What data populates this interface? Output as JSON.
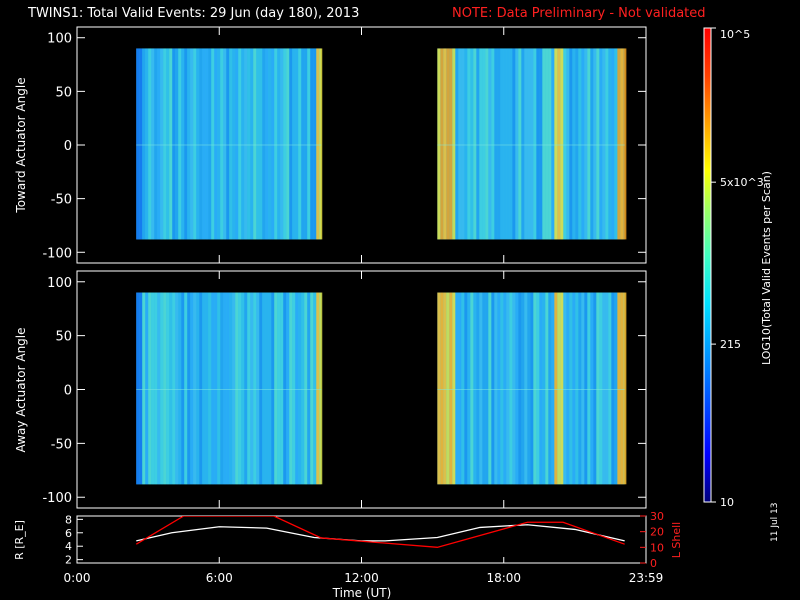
{
  "header": {
    "title": "TWINS1: Total Valid Events: 29 Jun (day 180), 2013",
    "note": "NOTE: Data Preliminary - Not validated"
  },
  "date_stamp": "11 Jul 13",
  "colors": {
    "background": "#000000",
    "axes": "#ffffff",
    "note": "#ff2020",
    "r_line": "#ffffff",
    "lshell_line": "#ff0000"
  },
  "chart_data": [
    {
      "type": "heatmap",
      "title": "",
      "ylabel": "Toward Actuator Angle",
      "ylim": [
        -110,
        110
      ],
      "yticks": [
        100,
        50,
        0,
        -50,
        -100
      ],
      "xlim": [
        0,
        24
      ],
      "data_blocks": [
        {
          "x_start": 2.5,
          "x_end": 10.3,
          "y_start": -88,
          "y_end": 90
        },
        {
          "x_start": 15.2,
          "x_end": 23.1,
          "y_start": -88,
          "y_end": 90
        }
      ],
      "colorbar": {
        "label": "LOG10(Total Valid Events per Scan)",
        "scale": "log",
        "range": [
          10,
          100000
        ],
        "tick_labels": [
          "10",
          "215",
          "5x10^3",
          "10^5"
        ],
        "tick_values": [
          10,
          215,
          5000,
          100000
        ]
      }
    },
    {
      "type": "heatmap",
      "title": "",
      "ylabel": "Away Actuator Angle",
      "ylim": [
        -110,
        110
      ],
      "yticks": [
        100,
        50,
        0,
        -50,
        -100
      ],
      "xlim": [
        0,
        24
      ],
      "data_blocks": [
        {
          "x_start": 2.5,
          "x_end": 10.3,
          "y_start": -88,
          "y_end": 90
        },
        {
          "x_start": 15.2,
          "x_end": 23.1,
          "y_start": -88,
          "y_end": 90
        }
      ]
    },
    {
      "type": "line",
      "title": "",
      "xlabel": "Time (UT)",
      "ylabel_left": "R [R_E]",
      "ylabel_right": "L Shell",
      "xlim": [
        0,
        24
      ],
      "xticks": [
        0,
        6,
        12,
        18,
        24
      ],
      "xtick_labels": [
        "0:00",
        "6:00",
        "12:00",
        "18:00",
        "23:59"
      ],
      "ylim_left": [
        1.5,
        8.5
      ],
      "yticks_left": [
        2,
        4,
        6,
        8
      ],
      "ylim_right": [
        0,
        30
      ],
      "yticks_right": [
        0,
        10,
        20,
        30
      ],
      "series": [
        {
          "name": "R",
          "axis": "left",
          "x": [
            2.5,
            4,
            6,
            8,
            10,
            12,
            13,
            15.2,
            17,
            19,
            21,
            23.1
          ],
          "values": [
            4.8,
            6.0,
            6.9,
            6.7,
            5.3,
            4.8,
            4.8,
            5.3,
            6.8,
            7.2,
            6.5,
            4.8
          ]
        },
        {
          "name": "L Shell",
          "axis": "right",
          "x": [
            2.5,
            4.5,
            4.9,
            8.3,
            10.3,
            15.2,
            19.0,
            20.5,
            23.1
          ],
          "values": [
            12,
            30,
            30,
            30,
            16,
            10,
            26,
            26,
            12
          ]
        }
      ]
    }
  ]
}
